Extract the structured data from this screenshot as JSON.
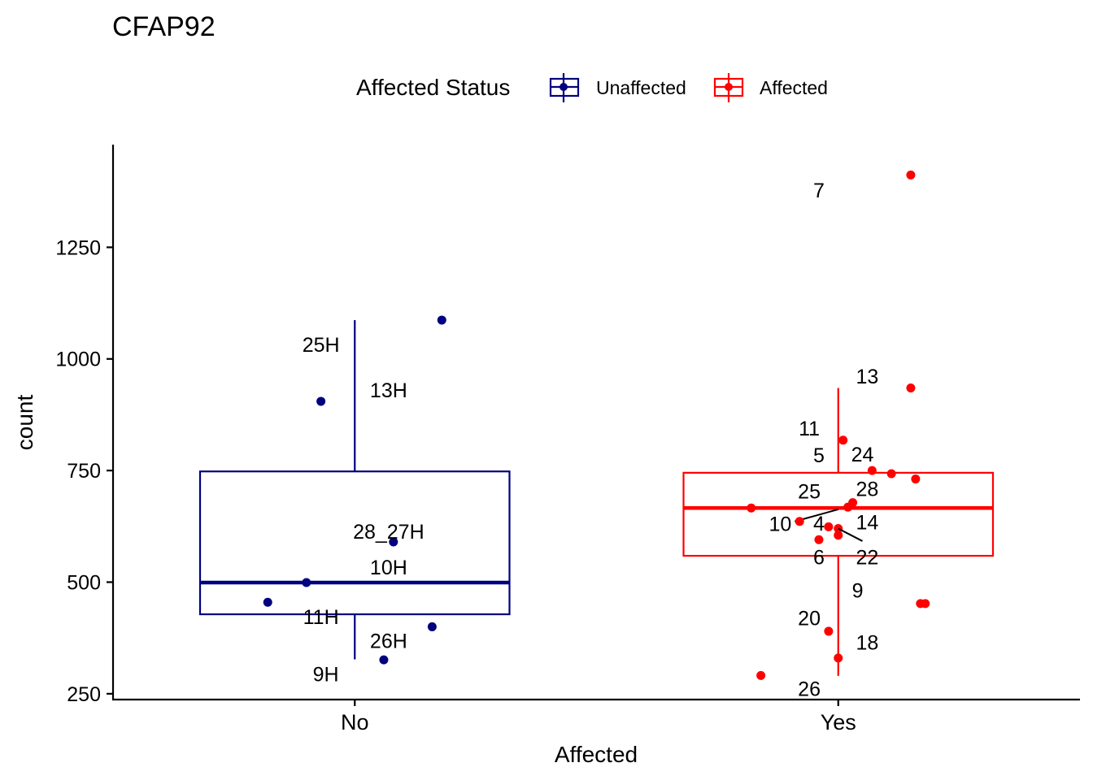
{
  "colors": {
    "unaffected": "#000080",
    "affected": "#ff0000",
    "axis": "#000000",
    "text": "#000000"
  },
  "chart_data": {
    "type": "box",
    "title": "CFAP92",
    "xlabel": "Affected",
    "ylabel": "count",
    "ylim": [
      237,
      1480
    ],
    "yticks": [
      250,
      500,
      750,
      1000,
      1250
    ],
    "categories": [
      "No",
      "Yes"
    ],
    "legend": {
      "title": "Affected Status",
      "position": "top",
      "entries": [
        {
          "label": "Unaffected",
          "color_key": "unaffected"
        },
        {
          "label": "Affected",
          "color_key": "affected"
        }
      ]
    },
    "boxes": [
      {
        "category": "No",
        "color_key": "unaffected",
        "whisker_low": 327,
        "q1": 428,
        "median": 499,
        "q3": 748,
        "whisker_high": 1087
      },
      {
        "category": "Yes",
        "color_key": "affected",
        "whisker_low": 290,
        "q1": 559,
        "median": 666,
        "q3": 745,
        "whisker_high": 935
      }
    ],
    "points": [
      {
        "category": "No",
        "jitter": 0.18,
        "y": 1087,
        "label": "25H",
        "label_dx": -0.07,
        "label_y": 1032
      },
      {
        "category": "No",
        "jitter": -0.07,
        "y": 905,
        "label": "13H",
        "label_dx": 0.07,
        "label_y": 930
      },
      {
        "category": "No",
        "jitter": 0.08,
        "y": 590,
        "label": "28_27H",
        "label_dx": 0.07,
        "label_y": 614
      },
      {
        "category": "No",
        "jitter": -0.1,
        "y": 499,
        "label": "10H",
        "label_dx": 0.07,
        "label_y": 534
      },
      {
        "category": "No",
        "jitter": -0.18,
        "y": 455,
        "label": "11H",
        "label_dx": -0.07,
        "label_y": 423
      },
      {
        "category": "No",
        "jitter": 0.16,
        "y": 400,
        "label": "26H",
        "label_dx": 0.07,
        "label_y": 369
      },
      {
        "category": "No",
        "jitter": 0.06,
        "y": 326,
        "label": "9H",
        "label_dx": -0.06,
        "label_y": 294
      },
      {
        "category": "Yes",
        "jitter": 0.15,
        "y": 1412,
        "label": "7",
        "label_dx": -0.04,
        "label_y": 1378
      },
      {
        "category": "Yes",
        "jitter": 0.15,
        "y": 935,
        "label": "13",
        "label_dx": 0.06,
        "label_y": 961
      },
      {
        "category": "Yes",
        "jitter": 0.01,
        "y": 818,
        "label": "11",
        "label_dx": -0.06,
        "label_y": 845
      },
      {
        "category": "Yes",
        "jitter": 0.07,
        "y": 750,
        "label": "5",
        "label_dx": -0.04,
        "label_y": 785
      },
      {
        "category": "Yes",
        "jitter": 0.11,
        "y": 743,
        "label": "24",
        "label_dx": 0.05,
        "label_y": 787
      },
      {
        "category": "Yes",
        "jitter": 0.16,
        "y": 731,
        "label": "",
        "label_dx": 0,
        "label_y": 731
      },
      {
        "category": "Yes",
        "jitter": 0.03,
        "y": 678,
        "label": "28",
        "label_dx": 0.06,
        "label_y": 709
      },
      {
        "category": "Yes",
        "jitter": 0.02,
        "y": 668,
        "label": "25",
        "label_dx": -0.06,
        "label_y": 704
      },
      {
        "category": "Yes",
        "jitter": -0.18,
        "y": 666,
        "label": "",
        "label_dx": 0,
        "label_y": 666
      },
      {
        "category": "Yes",
        "jitter": -0.08,
        "y": 636,
        "label": "10",
        "label_dx": -0.12,
        "label_y": 631,
        "leader": [
          -0.09,
          636,
          0.0,
          663
        ]
      },
      {
        "category": "Yes",
        "jitter": -0.02,
        "y": 624,
        "label": "4",
        "label_dx": -0.04,
        "label_y": 632
      },
      {
        "category": "Yes",
        "jitter": 0.0,
        "y": 620,
        "label": "14",
        "label_dx": 0.06,
        "label_y": 635
      },
      {
        "category": "Yes",
        "jitter": -0.04,
        "y": 595,
        "label": "6",
        "label_dx": -0.04,
        "label_y": 556
      },
      {
        "category": "Yes",
        "jitter": 0.18,
        "y": 452,
        "label": "9",
        "label_dx": 0.04,
        "label_y": 482
      },
      {
        "category": "Yes",
        "jitter": 0.17,
        "y": 452,
        "label": "",
        "label_dx": 0,
        "label_y": 452
      },
      {
        "category": "Yes",
        "jitter": -0.02,
        "y": 390,
        "label": "20",
        "label_dx": -0.06,
        "label_y": 420
      },
      {
        "category": "Yes",
        "jitter": -0.16,
        "y": 291,
        "label": "26",
        "label_dx": -0.06,
        "label_y": 262
      },
      {
        "category": "Yes",
        "jitter": 0.0,
        "y": 330,
        "label": "18",
        "label_dx": 0.06,
        "label_y": 365
      },
      {
        "category": "Yes",
        "jitter": 0.0,
        "y": 605,
        "label": "22",
        "label_dx": 0.06,
        "label_y": 556,
        "leader": [
          0.0,
          620,
          0.05,
          592
        ]
      }
    ]
  }
}
